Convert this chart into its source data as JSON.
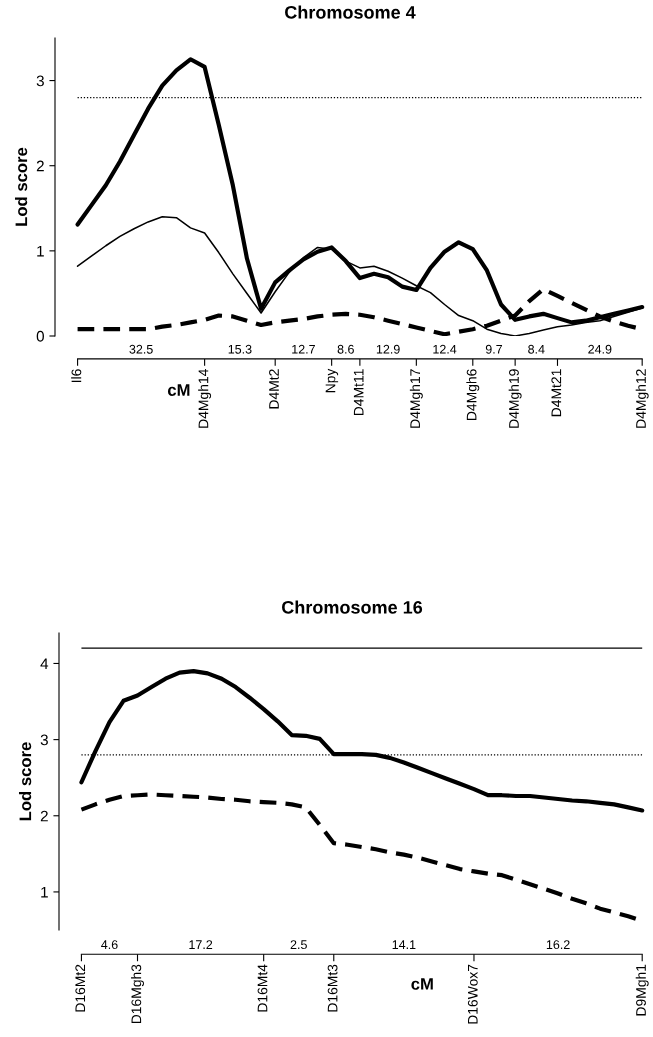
{
  "chart_data": [
    {
      "type": "line",
      "title": "Chromosome 4",
      "ylabel": "Lod score",
      "xlabel": "cM",
      "ylim": [
        0,
        3.5
      ],
      "yticks": [
        0,
        1,
        2,
        3
      ],
      "categories": [
        "Il6",
        null,
        null,
        null,
        null,
        null,
        null,
        null,
        null,
        "D4Mgh14",
        null,
        null,
        null,
        null,
        "D4Mt2",
        null,
        null,
        null,
        "Npy",
        null,
        "D4Mt11",
        null,
        null,
        null,
        "D4Mgh17",
        null,
        null,
        null,
        "D4Mgh6",
        null,
        null,
        "D4Mgh19",
        null,
        null,
        "D4Mt21",
        null,
        null,
        null,
        null,
        null,
        "D4Mgh12"
      ],
      "annotations": [
        "32.5",
        "15.3",
        "12.7",
        "8.6",
        "12.9",
        "12.4",
        "9.7",
        "8.4",
        "24.9"
      ],
      "ref_lines": [
        {
          "axis": "y",
          "value": 2.8,
          "line_style": "dotted"
        }
      ],
      "series": [
        {
          "color": "#000000",
          "line_style": "solid",
          "values": [
            1.31,
            1.54,
            1.77,
            2.05,
            2.36,
            2.67,
            2.94,
            3.12,
            3.25,
            3.16,
            2.48,
            1.77,
            0.91,
            0.32,
            0.63,
            0.77,
            0.9,
            0.99,
            1.04,
            0.88,
            0.68,
            0.73,
            0.69,
            0.58,
            0.54,
            0.8,
            0.99,
            1.1,
            1.02,
            0.77,
            0.37,
            0.19,
            0.23,
            0.26,
            0.21,
            0.16,
            0.18,
            0.22,
            0.26,
            0.3,
            0.34
          ]
        },
        {
          "color": "#000000",
          "line_style": "solid",
          "values": [
            0.82,
            0.94,
            1.06,
            1.17,
            1.26,
            1.34,
            1.4,
            1.39,
            1.27,
            1.21,
            0.98,
            0.73,
            0.5,
            0.27,
            0.52,
            0.75,
            0.92,
            1.04,
            1.02,
            0.88,
            0.8,
            0.82,
            0.76,
            0.68,
            0.59,
            0.51,
            0.37,
            0.24,
            0.18,
            0.08,
            0.03,
            0.0,
            0.03,
            0.07,
            0.11,
            0.13,
            0.16,
            0.18,
            0.23,
            0.28,
            0.33
          ]
        },
        {
          "color": "#000000",
          "line_style": "dashed",
          "values": [
            0.08,
            0.08,
            0.08,
            0.08,
            0.08,
            0.08,
            0.11,
            0.13,
            0.16,
            0.19,
            0.24,
            0.23,
            0.18,
            0.13,
            0.16,
            0.18,
            0.2,
            0.23,
            0.25,
            0.26,
            0.25,
            0.22,
            0.18,
            0.14,
            0.1,
            0.06,
            0.02,
            0.05,
            0.08,
            0.12,
            0.18,
            0.24,
            0.41,
            0.55,
            0.47,
            0.39,
            0.31,
            0.23,
            0.17,
            0.12,
            0.08
          ]
        }
      ]
    },
    {
      "type": "line",
      "title": "Chromosome 16",
      "ylabel": "Lod score",
      "xlabel": "cM",
      "ylim": [
        0.5,
        4.4
      ],
      "yticks": [
        1,
        2,
        3,
        4
      ],
      "categories": [
        "D16Mt2",
        null,
        null,
        null,
        "D16Mgh3",
        null,
        null,
        null,
        null,
        null,
        null,
        null,
        null,
        "D16Mt4",
        null,
        null,
        null,
        null,
        "D16Mt3",
        null,
        null,
        null,
        null,
        null,
        null,
        null,
        null,
        null,
        "D16Wox7",
        null,
        null,
        null,
        null,
        null,
        null,
        null,
        null,
        null,
        null,
        null,
        "D9Mgh1"
      ],
      "annotations": [
        "4.6",
        "17.2",
        "2.5",
        "14.1",
        "16.2"
      ],
      "ref_lines": [
        {
          "axis": "y",
          "value": 4.2,
          "line_style": "solid"
        },
        {
          "axis": "y",
          "value": 2.8,
          "line_style": "dotted"
        }
      ],
      "series": [
        {
          "color": "#000000",
          "line_style": "solid",
          "values": [
            2.44,
            2.85,
            3.23,
            3.51,
            3.58,
            3.69,
            3.8,
            3.88,
            3.9,
            3.87,
            3.8,
            3.69,
            3.55,
            3.4,
            3.24,
            3.06,
            3.05,
            3.01,
            2.81,
            2.81,
            2.81,
            2.8,
            2.76,
            2.7,
            2.63,
            2.56,
            2.49,
            2.42,
            2.35,
            2.27,
            2.27,
            2.26,
            2.26,
            2.24,
            2.22,
            2.2,
            2.19,
            2.17,
            2.15,
            2.11,
            2.07
          ]
        },
        {
          "color": "#000000",
          "line_style": "dashed",
          "values": [
            2.08,
            2.15,
            2.21,
            2.26,
            2.27,
            2.28,
            2.27,
            2.26,
            2.25,
            2.24,
            2.22,
            2.21,
            2.19,
            2.18,
            2.17,
            2.15,
            2.11,
            1.88,
            1.64,
            1.62,
            1.59,
            1.56,
            1.52,
            1.49,
            1.45,
            1.4,
            1.35,
            1.3,
            1.27,
            1.24,
            1.22,
            1.16,
            1.1,
            1.04,
            0.98,
            0.91,
            0.85,
            0.78,
            0.73,
            0.68,
            0.62
          ]
        }
      ]
    }
  ]
}
